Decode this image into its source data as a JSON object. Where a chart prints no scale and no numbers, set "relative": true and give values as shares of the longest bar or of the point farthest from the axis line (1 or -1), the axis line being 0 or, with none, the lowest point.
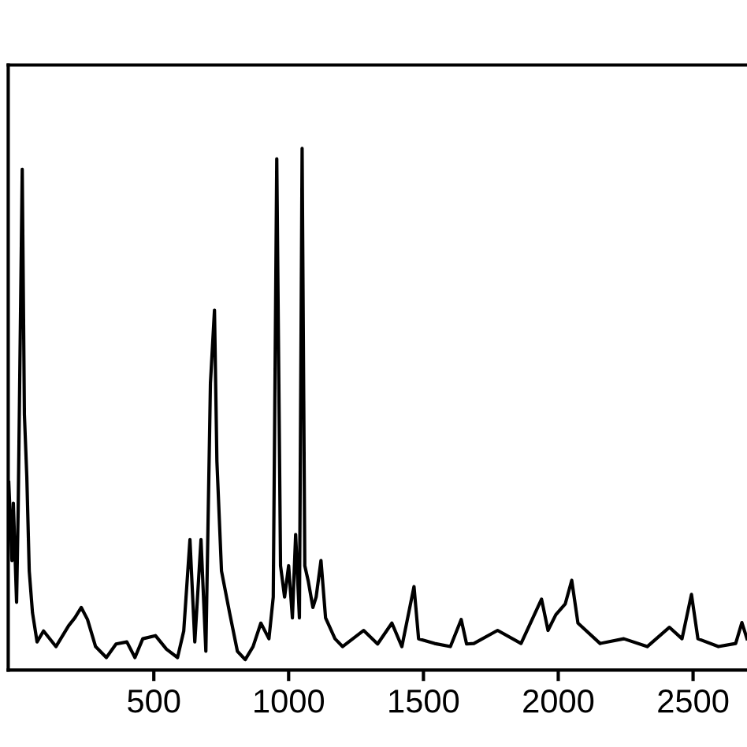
{
  "chart_data": {
    "type": "line",
    "relative": true,
    "tick_labels": "x",
    "grid": false,
    "marker": "none",
    "line_style": "solid",
    "xlim": [
      -40,
      2700
    ],
    "xticks": [
      500,
      1000,
      1500,
      2000,
      2500
    ],
    "series": [
      {
        "color": "#000000",
        "x": [
          -38,
          -26,
          -21,
          -9,
          -3,
          12,
          20,
          29,
          38,
          50,
          67,
          91,
          137,
          184,
          207,
          231,
          254,
          284,
          324,
          360,
          400,
          430,
          459,
          506,
          547,
          588,
          611,
          634,
          652,
          675,
          693,
          710,
          725,
          734,
          751,
          781,
          810,
          839,
          868,
          897,
          927,
          943,
          956,
          970,
          985,
          1000,
          1014,
          1026,
          1040,
          1050,
          1060,
          1073,
          1090,
          1102,
          1120,
          1137,
          1172,
          1200,
          1278,
          1330,
          1383,
          1420,
          1465,
          1482,
          1541,
          1600,
          1640,
          1660,
          1687,
          1775,
          1862,
          1938,
          1962,
          1991,
          2026,
          2050,
          2073,
          2155,
          2243,
          2330,
          2412,
          2459,
          2494,
          2518,
          2594,
          2658,
          2681,
          2700
        ],
        "values": [
          0.36,
          0.21,
          0.32,
          0.13,
          0.31,
          0.96,
          0.49,
          0.37,
          0.19,
          0.11,
          0.054,
          0.075,
          0.045,
          0.085,
          0.1,
          0.12,
          0.097,
          0.045,
          0.024,
          0.05,
          0.054,
          0.024,
          0.06,
          0.066,
          0.04,
          0.024,
          0.075,
          0.25,
          0.054,
          0.25,
          0.036,
          0.55,
          0.69,
          0.4,
          0.19,
          0.11,
          0.036,
          0.02,
          0.045,
          0.09,
          0.06,
          0.14,
          0.98,
          0.2,
          0.14,
          0.2,
          0.1,
          0.26,
          0.1,
          1.0,
          0.2,
          0.17,
          0.12,
          0.14,
          0.21,
          0.1,
          0.06,
          0.045,
          0.076,
          0.05,
          0.09,
          0.045,
          0.16,
          0.06,
          0.051,
          0.045,
          0.097,
          0.05,
          0.051,
          0.076,
          0.051,
          0.136,
          0.076,
          0.106,
          0.127,
          0.172,
          0.09,
          0.051,
          0.06,
          0.045,
          0.082,
          0.06,
          0.145,
          0.06,
          0.045,
          0.051,
          0.091,
          0.06
        ]
      }
    ]
  }
}
